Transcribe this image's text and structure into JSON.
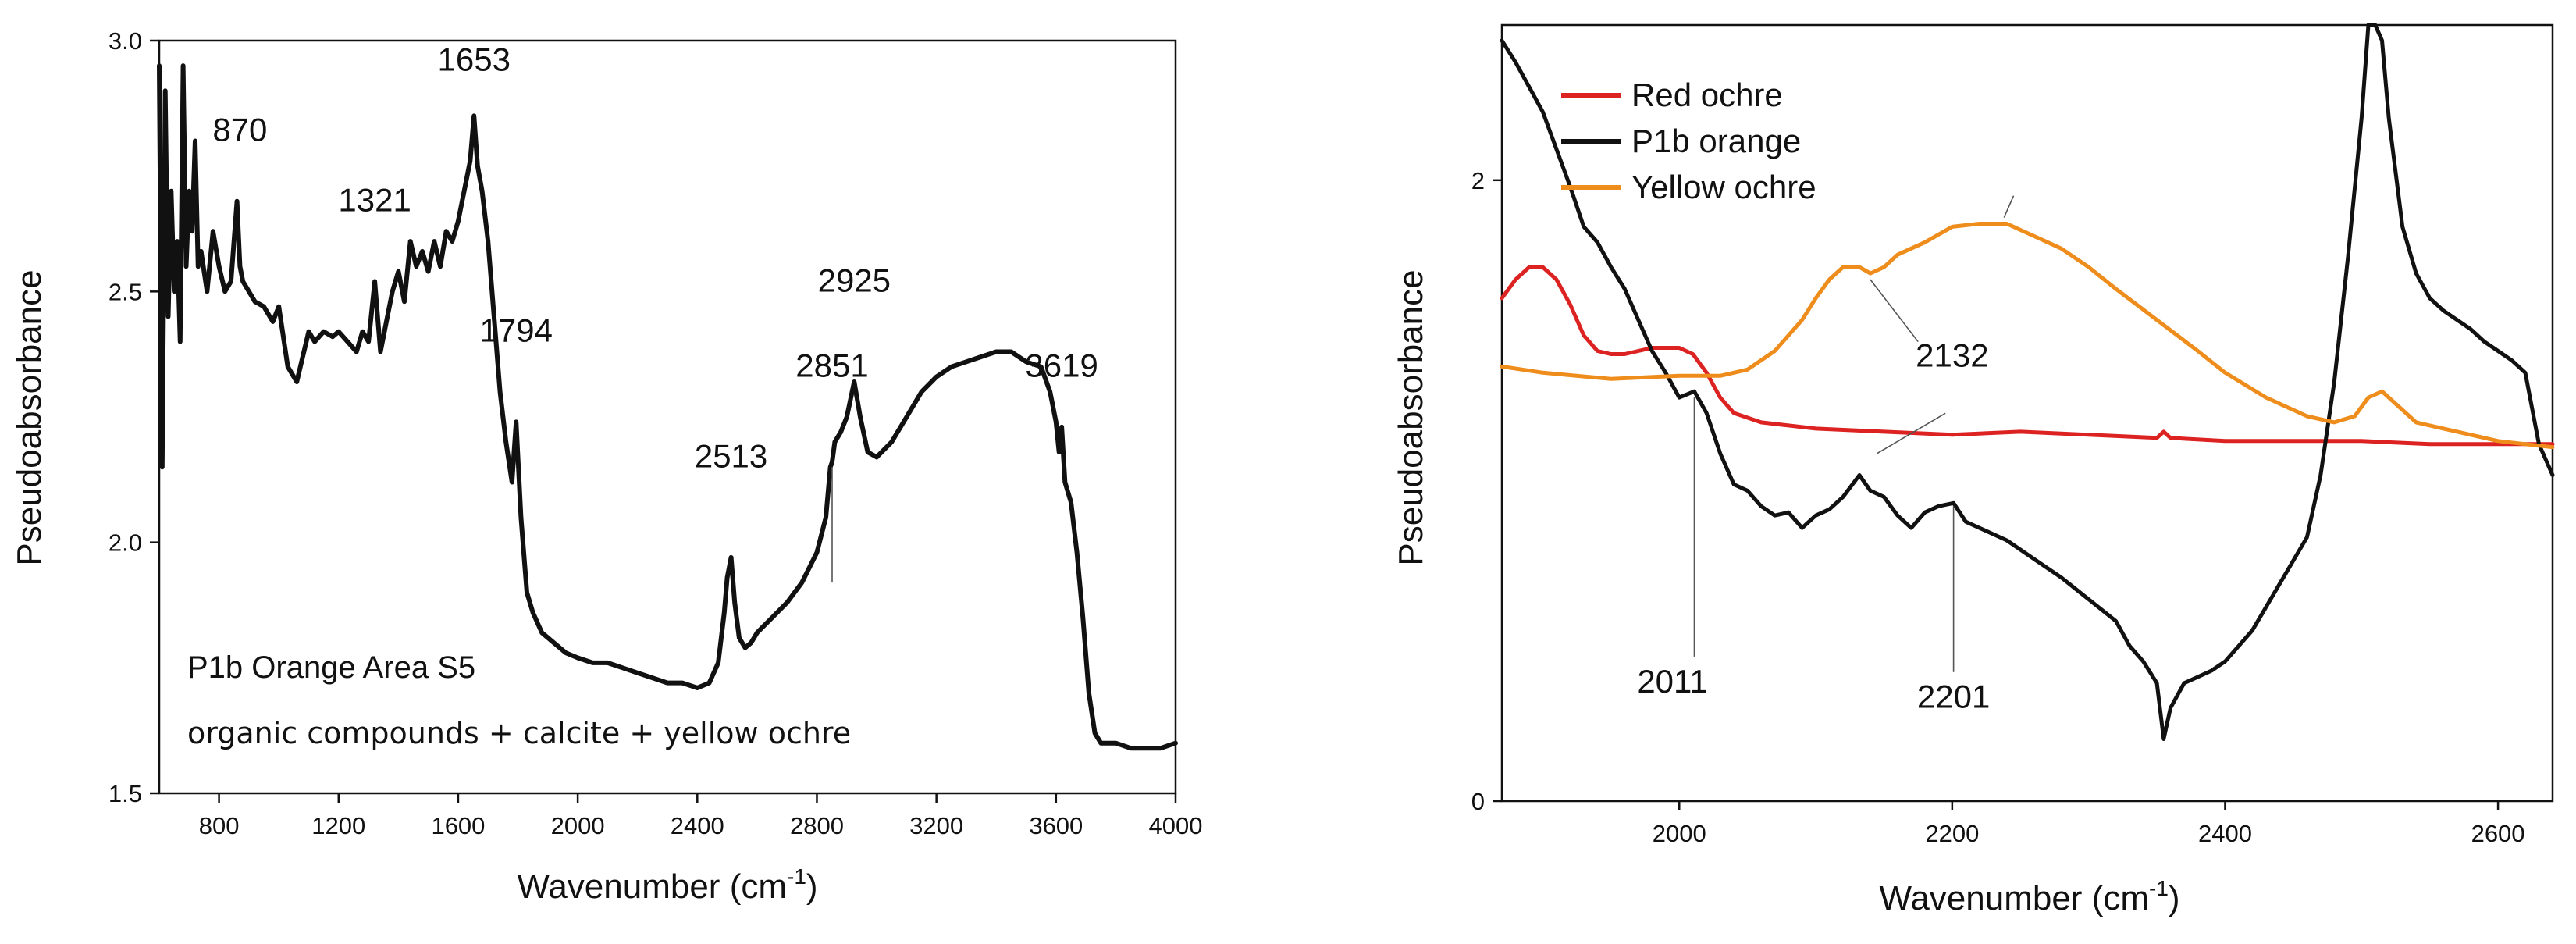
{
  "chart_data": [
    {
      "type": "line",
      "title": "",
      "xlabel": "Wavenumber (cm",
      "xlabel_sup": "-1",
      "xlabel_close": ")",
      "ylabel": "Pseudoabsorbance",
      "xlim": [
        600,
        4000
      ],
      "ylim": [
        1.5,
        3.0
      ],
      "x_ticks": [
        800,
        1200,
        1600,
        2000,
        2400,
        2800,
        3200,
        3600,
        4000
      ],
      "x_tick_labels": [
        "800",
        "1200",
        "1600",
        "2000",
        "2400",
        "2800",
        "3200",
        "3600",
        "4000"
      ],
      "y_ticks": [
        1.5,
        2.0,
        2.5,
        3.0
      ],
      "y_tick_labels": [
        "1.5",
        "2.0",
        "2.5",
        "3.0"
      ],
      "series": [
        {
          "name": "P1b Orange Area S5",
          "color": "#111111",
          "x": [
            600,
            610,
            620,
            630,
            640,
            650,
            660,
            670,
            680,
            690,
            700,
            710,
            720,
            730,
            740,
            760,
            780,
            800,
            820,
            840,
            860,
            870,
            880,
            900,
            920,
            950,
            980,
            1000,
            1030,
            1060,
            1080,
            1100,
            1120,
            1150,
            1180,
            1200,
            1230,
            1260,
            1280,
            1300,
            1321,
            1340,
            1360,
            1380,
            1400,
            1420,
            1440,
            1460,
            1480,
            1500,
            1520,
            1540,
            1560,
            1580,
            1600,
            1620,
            1640,
            1653,
            1665,
            1680,
            1700,
            1720,
            1740,
            1760,
            1780,
            1794,
            1810,
            1830,
            1850,
            1880,
            1920,
            1960,
            2000,
            2050,
            2100,
            2150,
            2200,
            2250,
            2300,
            2350,
            2400,
            2440,
            2470,
            2490,
            2500,
            2513,
            2525,
            2540,
            2560,
            2580,
            2600,
            2650,
            2700,
            2750,
            2800,
            2830,
            2845,
            2851,
            2860,
            2880,
            2900,
            2925,
            2945,
            2970,
            3000,
            3050,
            3100,
            3150,
            3200,
            3250,
            3300,
            3350,
            3400,
            3450,
            3500,
            3550,
            3580,
            3600,
            3610,
            3619,
            3630,
            3650,
            3670,
            3690,
            3710,
            3730,
            3750,
            3800,
            3850,
            3900,
            3950,
            4000
          ],
          "values": [
            2.95,
            2.15,
            2.9,
            2.45,
            2.7,
            2.5,
            2.6,
            2.4,
            2.95,
            2.55,
            2.7,
            2.62,
            2.8,
            2.55,
            2.58,
            2.5,
            2.62,
            2.55,
            2.5,
            2.52,
            2.68,
            2.55,
            2.52,
            2.5,
            2.48,
            2.47,
            2.44,
            2.47,
            2.35,
            2.32,
            2.37,
            2.42,
            2.4,
            2.42,
            2.41,
            2.42,
            2.4,
            2.38,
            2.42,
            2.4,
            2.52,
            2.38,
            2.44,
            2.5,
            2.54,
            2.48,
            2.6,
            2.55,
            2.58,
            2.54,
            2.6,
            2.55,
            2.62,
            2.6,
            2.64,
            2.7,
            2.76,
            2.85,
            2.75,
            2.7,
            2.6,
            2.45,
            2.3,
            2.2,
            2.12,
            2.24,
            2.05,
            1.9,
            1.86,
            1.82,
            1.8,
            1.78,
            1.77,
            1.76,
            1.76,
            1.75,
            1.74,
            1.73,
            1.72,
            1.72,
            1.71,
            1.72,
            1.76,
            1.86,
            1.93,
            1.97,
            1.88,
            1.81,
            1.79,
            1.8,
            1.82,
            1.85,
            1.88,
            1.92,
            1.98,
            2.05,
            2.15,
            2.16,
            2.2,
            2.22,
            2.25,
            2.32,
            2.25,
            2.18,
            2.17,
            2.2,
            2.25,
            2.3,
            2.33,
            2.35,
            2.36,
            2.37,
            2.38,
            2.38,
            2.36,
            2.35,
            2.3,
            2.24,
            2.18,
            2.23,
            2.12,
            2.08,
            1.98,
            1.85,
            1.7,
            1.62,
            1.6,
            1.6,
            1.59,
            1.59,
            1.59,
            1.6
          ]
        }
      ],
      "peak_labels": [
        {
          "text": "870",
          "x": 870,
          "y": 2.8
        },
        {
          "text": "1321",
          "x": 1321,
          "y": 2.66
        },
        {
          "text": "1653",
          "x": 1653,
          "y": 2.94
        },
        {
          "text": "1794",
          "x": 1794,
          "y": 2.4
        },
        {
          "text": "2513",
          "x": 2513,
          "y": 2.15
        },
        {
          "text": "2851",
          "x": 2851,
          "y": 2.33
        },
        {
          "text": "2925",
          "x": 2925,
          "y": 2.5
        },
        {
          "text": "3619",
          "x": 3619,
          "y": 2.33
        }
      ],
      "annotations": [
        {
          "text": "P1b Orange Area S5"
        },
        {
          "text": "organic compounds + calcite + yellow ochre"
        }
      ]
    },
    {
      "type": "line",
      "title": "",
      "xlabel": "Wavenumber (cm",
      "xlabel_sup": "-1",
      "xlabel_close": ")",
      "ylabel": "Pseudoabsorbance",
      "xlim": [
        1870,
        2640
      ],
      "ylim": [
        0,
        2.5
      ],
      "x_ticks": [
        2000,
        2200,
        2400,
        2600
      ],
      "x_tick_labels": [
        "2000",
        "2200",
        "2400",
        "2600"
      ],
      "y_ticks": [
        0,
        2
      ],
      "y_tick_labels": [
        "0",
        "2"
      ],
      "legend": {
        "placement": "top-left",
        "entries": [
          "Red ochre",
          "P1b orange",
          "Yellow ochre"
        ]
      },
      "series": [
        {
          "name": "Red ochre",
          "color": "#dd2222",
          "x": [
            1870,
            1880,
            1890,
            1900,
            1910,
            1920,
            1930,
            1940,
            1950,
            1960,
            1970,
            1980,
            1990,
            2000,
            2010,
            2020,
            2030,
            2040,
            2060,
            2080,
            2100,
            2150,
            2200,
            2250,
            2300,
            2350,
            2355,
            2360,
            2400,
            2450,
            2500,
            2550,
            2600,
            2640
          ],
          "values": [
            1.62,
            1.68,
            1.72,
            1.72,
            1.68,
            1.6,
            1.5,
            1.45,
            1.44,
            1.44,
            1.45,
            1.46,
            1.46,
            1.46,
            1.44,
            1.38,
            1.3,
            1.25,
            1.22,
            1.21,
            1.2,
            1.19,
            1.18,
            1.19,
            1.18,
            1.17,
            1.19,
            1.17,
            1.16,
            1.16,
            1.16,
            1.15,
            1.15,
            1.15
          ]
        },
        {
          "name": "P1b orange",
          "color": "#111111",
          "x": [
            1870,
            1880,
            1890,
            1900,
            1910,
            1920,
            1930,
            1940,
            1950,
            1960,
            1970,
            1980,
            1990,
            2000,
            2011,
            2020,
            2030,
            2040,
            2050,
            2060,
            2070,
            2080,
            2090,
            2100,
            2110,
            2120,
            2132,
            2140,
            2150,
            2160,
            2170,
            2180,
            2190,
            2201,
            2210,
            2220,
            2240,
            2260,
            2280,
            2300,
            2320,
            2330,
            2340,
            2350,
            2355,
            2360,
            2370,
            2380,
            2390,
            2400,
            2420,
            2440,
            2460,
            2470,
            2480,
            2490,
            2500,
            2505,
            2510,
            2515,
            2520,
            2530,
            2540,
            2550,
            2560,
            2570,
            2580,
            2590,
            2600,
            2610,
            2620,
            2630,
            2640
          ],
          "values": [
            2.45,
            2.38,
            2.3,
            2.22,
            2.1,
            1.98,
            1.85,
            1.8,
            1.72,
            1.65,
            1.55,
            1.45,
            1.38,
            1.3,
            1.32,
            1.25,
            1.12,
            1.02,
            1.0,
            0.95,
            0.92,
            0.93,
            0.88,
            0.92,
            0.94,
            0.98,
            1.05,
            1.0,
            0.98,
            0.92,
            0.88,
            0.93,
            0.95,
            0.96,
            0.9,
            0.88,
            0.84,
            0.78,
            0.72,
            0.65,
            0.58,
            0.5,
            0.45,
            0.38,
            0.2,
            0.3,
            0.38,
            0.4,
            0.42,
            0.45,
            0.55,
            0.7,
            0.85,
            1.05,
            1.35,
            1.75,
            2.2,
            2.5,
            2.55,
            2.45,
            2.2,
            1.85,
            1.7,
            1.62,
            1.58,
            1.55,
            1.52,
            1.48,
            1.45,
            1.42,
            1.38,
            1.15,
            1.05
          ]
        },
        {
          "name": "Yellow ochre",
          "color": "#ee8c1c",
          "x": [
            1870,
            1900,
            1950,
            2000,
            2030,
            2050,
            2070,
            2090,
            2100,
            2110,
            2120,
            2132,
            2140,
            2150,
            2160,
            2180,
            2200,
            2220,
            2240,
            2260,
            2280,
            2300,
            2320,
            2350,
            2380,
            2400,
            2430,
            2460,
            2480,
            2495,
            2505,
            2515,
            2525,
            2540,
            2560,
            2580,
            2600,
            2620,
            2640
          ],
          "values": [
            1.4,
            1.38,
            1.36,
            1.37,
            1.37,
            1.39,
            1.45,
            1.55,
            1.62,
            1.68,
            1.72,
            1.72,
            1.7,
            1.72,
            1.76,
            1.8,
            1.85,
            1.86,
            1.86,
            1.82,
            1.78,
            1.72,
            1.65,
            1.55,
            1.45,
            1.38,
            1.3,
            1.24,
            1.22,
            1.24,
            1.3,
            1.32,
            1.28,
            1.22,
            1.2,
            1.18,
            1.16,
            1.15,
            1.14
          ]
        }
      ],
      "peak_labels": [
        {
          "text": "2011",
          "x": 2011,
          "label_x": 1995,
          "label_y": 0.35,
          "point_y": 1.3
        },
        {
          "text": "2132",
          "x": 2132,
          "label_x": 2200,
          "label_y": 1.4
        },
        {
          "text": "2201",
          "x": 2201,
          "label_x": 2201,
          "label_y": 0.3,
          "point_y": 0.95
        }
      ]
    }
  ]
}
